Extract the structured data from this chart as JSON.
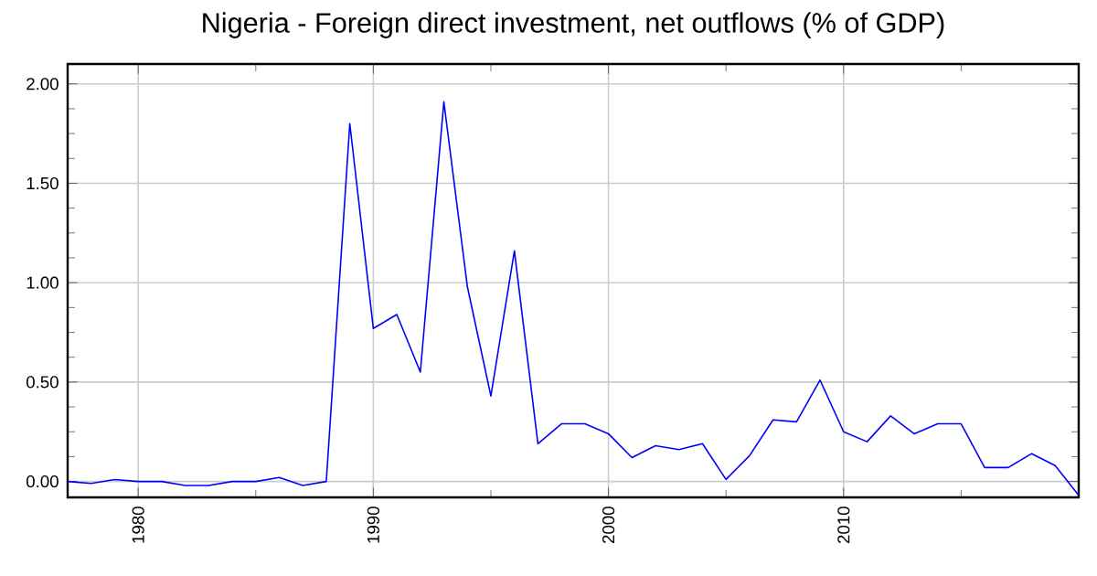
{
  "chart_data": {
    "type": "line",
    "title": "Nigeria - Foreign direct investment, net outflows (% of GDP)",
    "x": [
      1977,
      1978,
      1979,
      1980,
      1981,
      1982,
      1983,
      1984,
      1985,
      1986,
      1987,
      1988,
      1989,
      1990,
      1991,
      1992,
      1993,
      1994,
      1995,
      1996,
      1997,
      1998,
      1999,
      2000,
      2001,
      2002,
      2003,
      2004,
      2005,
      2006,
      2007,
      2008,
      2009,
      2010,
      2011,
      2012,
      2013,
      2014,
      2015,
      2016,
      2017,
      2018,
      2019,
      2020
    ],
    "series": [
      {
        "color": "#0000ff",
        "values": [
          0.0,
          -0.01,
          0.01,
          0.0,
          0.0,
          -0.02,
          -0.02,
          0.0,
          0.0,
          0.02,
          -0.02,
          0.0,
          1.8,
          0.77,
          0.84,
          0.55,
          1.91,
          0.98,
          0.43,
          1.16,
          0.19,
          0.29,
          0.29,
          0.24,
          0.12,
          0.18,
          0.16,
          0.19,
          0.01,
          0.13,
          0.31,
          0.3,
          0.51,
          0.25,
          0.2,
          0.33,
          0.24,
          0.29,
          0.29,
          0.07,
          0.07,
          0.14,
          0.08,
          -0.07
        ]
      }
    ],
    "xlim": [
      1977,
      2020
    ],
    "ylim": [
      -0.08,
      2.1
    ],
    "xticks": [
      {
        "value": 1980,
        "label": "1980"
      },
      {
        "value": 1985,
        "label": null
      },
      {
        "value": 1990,
        "label": "1990"
      },
      {
        "value": 1995,
        "label": null
      },
      {
        "value": 2000,
        "label": "2000"
      },
      {
        "value": 2005,
        "label": null
      },
      {
        "value": 2010,
        "label": "2010"
      },
      {
        "value": 2015,
        "label": null
      }
    ],
    "yticks": [
      {
        "value": 0,
        "label": "0.00"
      },
      {
        "value": 0.5,
        "label": "0.50"
      },
      {
        "value": 1.0,
        "label": "1.00"
      },
      {
        "value": 1.5,
        "label": "1.50"
      },
      {
        "value": 2.0,
        "label": "2.00"
      }
    ],
    "grid": true,
    "marker": "none",
    "line_style": "solid"
  }
}
